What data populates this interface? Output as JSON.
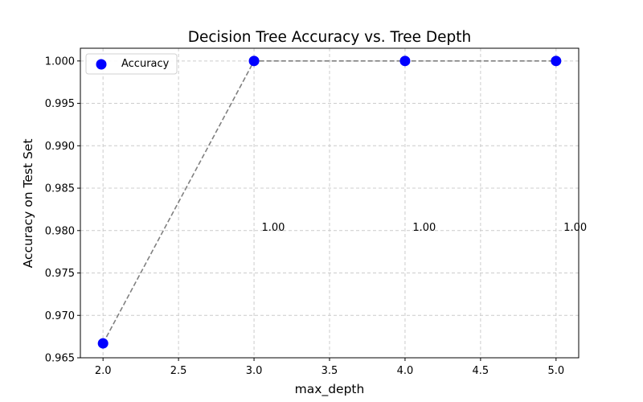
{
  "chart_data": {
    "type": "scatter",
    "title": "Decision Tree Accuracy vs. Tree Depth",
    "xlabel": "max_depth",
    "ylabel": "Accuracy on Test Set",
    "xlim": [
      1.85,
      5.15
    ],
    "ylim": [
      0.965,
      1.0015
    ],
    "xticks": [
      2.0,
      2.5,
      3.0,
      3.5,
      4.0,
      4.5,
      5.0
    ],
    "xtick_labels": [
      "2.0",
      "2.5",
      "3.0",
      "3.5",
      "4.0",
      "4.5",
      "5.0"
    ],
    "yticks": [
      0.965,
      0.97,
      0.975,
      0.98,
      0.985,
      0.99,
      0.995,
      1.0
    ],
    "ytick_labels": [
      "0.965",
      "0.970",
      "0.975",
      "0.980",
      "0.985",
      "0.990",
      "0.995",
      "1.000"
    ],
    "grid": true,
    "legend_position": "top-left",
    "series": [
      {
        "name": "Accuracy",
        "x": [
          2,
          3,
          4,
          5
        ],
        "y": [
          0.9667,
          1.0,
          1.0,
          1.0
        ],
        "marker_color": "#0000ff",
        "line_color": "#808080",
        "line_style": "dashed"
      }
    ],
    "annotations": [
      {
        "text": "1.00",
        "x": 3.05,
        "y": 0.98
      },
      {
        "text": "1.00",
        "x": 4.05,
        "y": 0.98
      },
      {
        "text": "1.00",
        "x": 5.05,
        "y": 0.98
      }
    ]
  }
}
